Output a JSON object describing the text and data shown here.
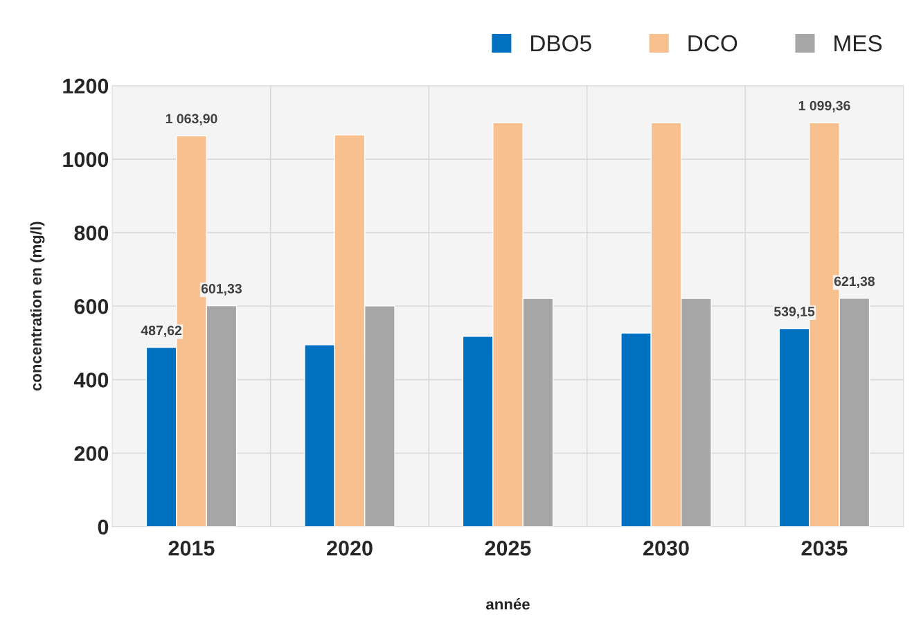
{
  "chart_data": {
    "type": "bar",
    "xlabel": "année",
    "ylabel": "concentration en (mg/l)",
    "categories": [
      "2015",
      "2020",
      "2025",
      "2030",
      "2035"
    ],
    "series": [
      {
        "name": "DBO5",
        "color": "#0070c0",
        "values": [
          487.62,
          495,
          518,
          527,
          539.15
        ],
        "value_labels": [
          "487,62",
          null,
          null,
          null,
          "539,15"
        ]
      },
      {
        "name": "DCO",
        "color": "#f8c08f",
        "values": [
          1063.9,
          1066,
          1099,
          1099,
          1099.36
        ],
        "value_labels": [
          "1 063,90",
          null,
          null,
          null,
          "1 099,36"
        ]
      },
      {
        "name": "MES",
        "color": "#a6a6a6",
        "values": [
          601.33,
          601,
          621,
          621,
          621.38
        ],
        "value_labels": [
          "601,33",
          null,
          null,
          null,
          "621,38"
        ]
      }
    ],
    "ylim": [
      0,
      1200
    ],
    "yticks": [
      0,
      200,
      400,
      600,
      800,
      1000,
      1200
    ],
    "grid": "y",
    "legend": "top right"
  }
}
